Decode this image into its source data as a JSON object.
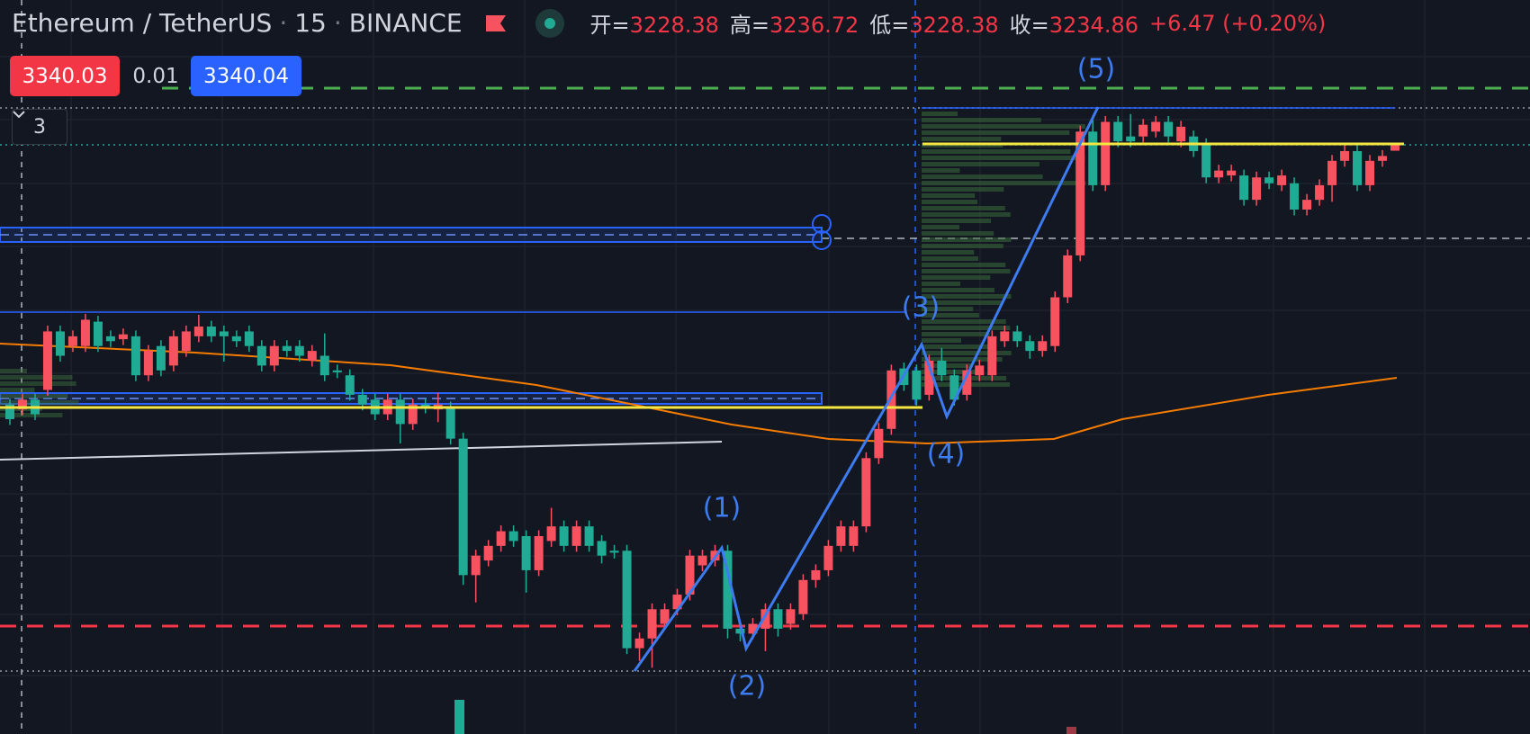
{
  "header": {
    "symbol": "Ethereum / TetherUS",
    "interval": "15",
    "exchange": "BINANCE",
    "ohlc": [
      {
        "label": "开=",
        "value": 3228.38
      },
      {
        "label": "高=",
        "value": 3236.72
      },
      {
        "label": "低=",
        "value": 3228.38
      },
      {
        "label": "收=",
        "value": 3234.86
      }
    ],
    "change": "+6.47 (+0.20%)"
  },
  "quote": {
    "sell": 3340.03,
    "spread": 0.01,
    "buy": 3340.04
  },
  "indicators": {
    "count": "3"
  },
  "chart_data": {
    "type": "candlestick",
    "ylim": [
      2630,
      3383
    ],
    "up_color": "#f7525f",
    "down_color": "#22ab94",
    "annotations": [
      "(1)",
      "(2)",
      "(3)",
      "(4)",
      "(5)"
    ],
    "open": [
      2968,
      2963,
      2973,
      2983,
      3043,
      3028,
      3028,
      3053,
      3038,
      3035,
      3038,
      2998,
      3028,
      3008,
      3023,
      3038,
      3048,
      3043,
      3038,
      3043,
      3028,
      3008,
      3028,
      3028,
      3013,
      3018,
      3003,
      2998,
      2978,
      2973,
      2958,
      2973,
      2948,
      2968,
      2963,
      2965,
      2933,
      2793,
      2808,
      2823,
      2838,
      2833,
      2798,
      2828,
      2843,
      2823,
      2843,
      2828,
      2818,
      2818,
      2718,
      2728,
      2743,
      2758,
      2773,
      2803,
      2808,
      2818,
      2738,
      2733,
      2738,
      2758,
      2743,
      2753,
      2788,
      2798,
      2823,
      2823,
      2843,
      2913,
      2943,
      3005,
      3003,
      2978,
      3013,
      2998,
      2978,
      2998,
      2998,
      3033,
      3043,
      3033,
      3023,
      3028,
      3078,
      3121,
      3248,
      3193,
      3258,
      3243,
      3243,
      3248,
      3258,
      3238,
      3243,
      3235,
      3201,
      3203,
      3203,
      3178,
      3201,
      3193,
      3195,
      3168,
      3178,
      3193,
      3218,
      3228,
      3193,
      3218,
      3228.38
    ],
    "high": [
      2974,
      2979,
      2979,
      3049,
      3049,
      3044,
      3061,
      3059,
      3044,
      3046,
      3044,
      3029,
      3034,
      3044,
      3049,
      3060,
      3054,
      3049,
      3044,
      3049,
      3034,
      3034,
      3034,
      3034,
      3029,
      3041,
      3009,
      3004,
      2984,
      2979,
      2979,
      2979,
      2974,
      2974,
      2980,
      2971,
      2939,
      2819,
      2829,
      2844,
      2844,
      2839,
      2839,
      2862,
      2849,
      2849,
      2849,
      2834,
      2824,
      2824,
      2734,
      2764,
      2764,
      2779,
      2819,
      2819,
      2824,
      2824,
      2744,
      2749,
      2764,
      2764,
      2764,
      2794,
      2804,
      2829,
      2849,
      2849,
      2919,
      2949,
      3009,
      3011,
      3009,
      3019,
      3026,
      3004,
      3009,
      3014,
      3044,
      3049,
      3049,
      3039,
      3039,
      3084,
      3127,
      3254,
      3260,
      3264,
      3264,
      3266,
      3261,
      3264,
      3264,
      3259,
      3249,
      3241,
      3214,
      3214,
      3209,
      3207,
      3207,
      3209,
      3201,
      3184,
      3199,
      3224,
      3234,
      3234,
      3224,
      3229,
      3236.72
    ],
    "low": [
      2947,
      2957,
      2952,
      2977,
      3012,
      3022,
      3022,
      3022,
      3027,
      3029,
      2992,
      2992,
      2997,
      3002,
      3017,
      3032,
      3032,
      3012,
      3027,
      3022,
      3002,
      3002,
      3017,
      3012,
      3007,
      2992,
      2995,
      2972,
      2962,
      2952,
      2952,
      2928,
      2942,
      2959,
      2950,
      2927,
      2783,
      2765,
      2802,
      2817,
      2822,
      2775,
      2792,
      2822,
      2817,
      2817,
      2817,
      2805,
      2810,
      2712,
      2705,
      2698,
      2737,
      2752,
      2767,
      2797,
      2802,
      2728,
      2725,
      2727,
      2715,
      2730,
      2737,
      2747,
      2780,
      2792,
      2817,
      2817,
      2837,
      2907,
      2937,
      2982,
      2967,
      2972,
      2992,
      2967,
      2972,
      2992,
      2992,
      3027,
      3027,
      3015,
      3017,
      3022,
      3072,
      3115,
      3187,
      3187,
      3232,
      3232,
      3237,
      3242,
      3237,
      3232,
      3222,
      3195,
      3195,
      3197,
      3172,
      3172,
      3189,
      3187,
      3162,
      3162,
      3172,
      3176,
      3212,
      3187,
      3187,
      3212,
      3228.38
    ],
    "close": [
      2953,
      2973,
      2958,
      3043,
      3018,
      3038,
      3055,
      3028,
      3033,
      3040,
      2998,
      3023,
      3003,
      3038,
      3043,
      3048,
      3038,
      3038,
      3033,
      3028,
      3008,
      3028,
      3023,
      3018,
      3023,
      2998,
      3001,
      2978,
      2968,
      2958,
      2973,
      2948,
      2968,
      2965,
      2968,
      2933,
      2793,
      2813,
      2823,
      2838,
      2828,
      2798,
      2833,
      2843,
      2823,
      2843,
      2823,
      2813,
      2816,
      2718,
      2728,
      2758,
      2758,
      2773,
      2813,
      2813,
      2818,
      2738,
      2733,
      2743,
      2758,
      2738,
      2758,
      2788,
      2798,
      2823,
      2843,
      2843,
      2913,
      2943,
      3003,
      2988,
      2973,
      3013,
      2998,
      2973,
      3003,
      3008,
      3038,
      3043,
      3033,
      3023,
      3033,
      3078,
      3121,
      3248,
      3193,
      3258,
      3238,
      3238,
      3255,
      3258,
      3243,
      3253,
      3228,
      3201,
      3208,
      3208,
      3178,
      3201,
      3195,
      3203,
      3168,
      3178,
      3193,
      3218,
      3228,
      3193,
      3218,
      3223,
      3234.86
    ]
  }
}
